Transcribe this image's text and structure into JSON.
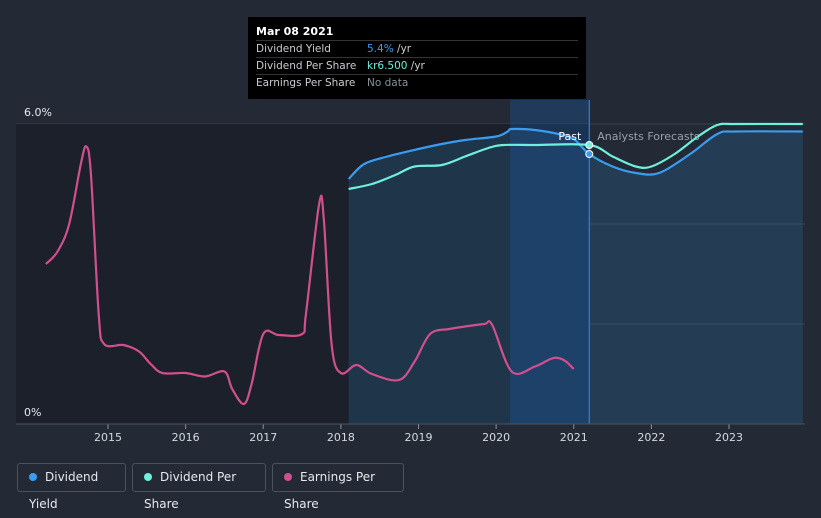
{
  "tooltip": {
    "date": "Mar 08 2021",
    "rows": [
      {
        "label": "Dividend Yield",
        "value": "5.4%",
        "unit": " /yr",
        "color": "#3a9cf0"
      },
      {
        "label": "Dividend Per Share",
        "value": "kr6.500",
        "unit": " /yr",
        "color": "#6ef0dc"
      },
      {
        "label": "Earnings Per Share",
        "value": "No data",
        "unit": "",
        "color": "#8a8f98"
      }
    ]
  },
  "annotations": {
    "past": "Past",
    "forecast": "Analysts Forecasts"
  },
  "legend": [
    {
      "label": "Dividend Yield",
      "color": "#3a9cf0"
    },
    {
      "label": "Dividend Per Share",
      "color": "#6ef0dc"
    },
    {
      "label": "Earnings Per Share",
      "color": "#d0508e"
    }
  ],
  "chart_data": {
    "type": "line",
    "x_ticks": [
      "2015",
      "2016",
      "2017",
      "2018",
      "2019",
      "2020",
      "2021",
      "2022",
      "2023"
    ],
    "y_ticks": [
      "6.0%",
      "0%"
    ],
    "ylim": [
      0,
      6
    ],
    "grid": true,
    "forecast_start": 2021.2,
    "series": [
      {
        "name": "Dividend Yield",
        "color": "#3a9cf0",
        "points": [
          [
            2018.1,
            4.9
          ],
          [
            2018.3,
            5.2
          ],
          [
            2018.6,
            5.35
          ],
          [
            2019.0,
            5.5
          ],
          [
            2019.3,
            5.6
          ],
          [
            2019.6,
            5.68
          ],
          [
            2020.0,
            5.75
          ],
          [
            2020.15,
            5.85
          ],
          [
            2020.2,
            5.9
          ],
          [
            2020.5,
            5.88
          ],
          [
            2020.8,
            5.8
          ],
          [
            2021.0,
            5.7
          ],
          [
            2021.2,
            5.4
          ],
          [
            2021.5,
            5.15
          ],
          [
            2021.8,
            5.02
          ],
          [
            2022.1,
            5.02
          ],
          [
            2022.5,
            5.4
          ],
          [
            2022.85,
            5.8
          ],
          [
            2023.1,
            5.85
          ],
          [
            2023.95,
            5.85
          ]
        ]
      },
      {
        "name": "Dividend Per Share",
        "color": "#6ef0dc",
        "points": [
          [
            2018.1,
            4.7
          ],
          [
            2018.4,
            4.8
          ],
          [
            2018.7,
            4.98
          ],
          [
            2018.95,
            5.15
          ],
          [
            2019.3,
            5.18
          ],
          [
            2019.6,
            5.35
          ],
          [
            2019.9,
            5.52
          ],
          [
            2020.1,
            5.58
          ],
          [
            2020.5,
            5.58
          ],
          [
            2021.2,
            5.58
          ],
          [
            2021.5,
            5.35
          ],
          [
            2021.8,
            5.15
          ],
          [
            2022.0,
            5.15
          ],
          [
            2022.3,
            5.4
          ],
          [
            2022.6,
            5.75
          ],
          [
            2022.85,
            5.98
          ],
          [
            2023.1,
            6.0
          ],
          [
            2023.95,
            6.0
          ]
        ]
      },
      {
        "name": "Earnings Per Share",
        "color": "#d0508e",
        "points": [
          [
            2014.2,
            3.2
          ],
          [
            2014.35,
            3.45
          ],
          [
            2014.5,
            4.0
          ],
          [
            2014.65,
            5.2
          ],
          [
            2014.72,
            5.55
          ],
          [
            2014.78,
            5.0
          ],
          [
            2014.88,
            2.2
          ],
          [
            2014.95,
            1.6
          ],
          [
            2015.2,
            1.58
          ],
          [
            2015.4,
            1.45
          ],
          [
            2015.55,
            1.2
          ],
          [
            2015.7,
            1.02
          ],
          [
            2016.0,
            1.02
          ],
          [
            2016.25,
            0.95
          ],
          [
            2016.5,
            1.05
          ],
          [
            2016.6,
            0.7
          ],
          [
            2016.75,
            0.4
          ],
          [
            2016.85,
            0.8
          ],
          [
            2017.0,
            1.8
          ],
          [
            2017.2,
            1.78
          ],
          [
            2017.5,
            1.8
          ],
          [
            2017.55,
            2.2
          ],
          [
            2017.72,
            4.4
          ],
          [
            2017.78,
            4.1
          ],
          [
            2017.88,
            1.6
          ],
          [
            2018.0,
            1.02
          ],
          [
            2018.2,
            1.18
          ],
          [
            2018.4,
            1.0
          ],
          [
            2018.75,
            0.88
          ],
          [
            2018.95,
            1.25
          ],
          [
            2019.15,
            1.8
          ],
          [
            2019.4,
            1.9
          ],
          [
            2019.6,
            1.95
          ],
          [
            2019.85,
            2.0
          ],
          [
            2019.95,
            1.98
          ],
          [
            2020.2,
            1.05
          ],
          [
            2020.5,
            1.15
          ],
          [
            2020.7,
            1.3
          ],
          [
            2020.8,
            1.32
          ],
          [
            2020.9,
            1.25
          ],
          [
            2021.0,
            1.1
          ]
        ]
      }
    ]
  }
}
